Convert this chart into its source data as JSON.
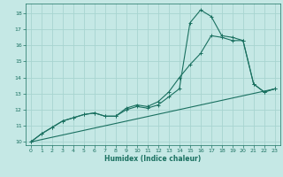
{
  "xlabel": "Humidex (Indice chaleur)",
  "xlim": [
    -0.5,
    23.5
  ],
  "ylim": [
    9.8,
    18.6
  ],
  "yticks": [
    10,
    11,
    12,
    13,
    14,
    15,
    16,
    17,
    18
  ],
  "xticks": [
    0,
    1,
    2,
    3,
    4,
    5,
    6,
    7,
    8,
    9,
    10,
    11,
    12,
    13,
    14,
    15,
    16,
    17,
    18,
    19,
    20,
    21,
    22,
    23
  ],
  "bg_color": "#c5e8e5",
  "grid_color": "#a8d4d0",
  "line_color": "#1a7060",
  "line1_x": [
    0,
    1,
    2,
    3,
    4,
    5,
    6,
    7,
    8,
    9,
    10,
    11,
    12,
    13,
    14,
    15,
    16,
    17,
    18,
    19,
    20,
    21,
    22,
    23
  ],
  "line1_y": [
    10.0,
    10.5,
    10.9,
    11.3,
    11.5,
    11.7,
    11.8,
    11.6,
    11.6,
    12.1,
    12.3,
    12.2,
    12.5,
    13.1,
    14.0,
    14.8,
    15.5,
    16.6,
    16.5,
    16.3,
    16.3,
    13.6,
    13.1,
    13.3
  ],
  "line2_x": [
    0,
    1,
    2,
    3,
    4,
    5,
    6,
    7,
    8,
    9,
    10,
    11,
    12,
    13,
    14,
    15,
    16,
    17,
    18,
    19,
    20,
    21,
    22,
    23
  ],
  "line2_y": [
    10.0,
    10.5,
    10.9,
    11.3,
    11.5,
    11.7,
    11.8,
    11.6,
    11.6,
    12.0,
    12.2,
    12.1,
    12.3,
    12.8,
    13.3,
    17.4,
    18.2,
    17.8,
    16.6,
    16.5,
    16.3,
    13.6,
    13.1,
    13.3
  ],
  "line3_x": [
    0,
    23
  ],
  "line3_y": [
    10.0,
    13.3
  ]
}
